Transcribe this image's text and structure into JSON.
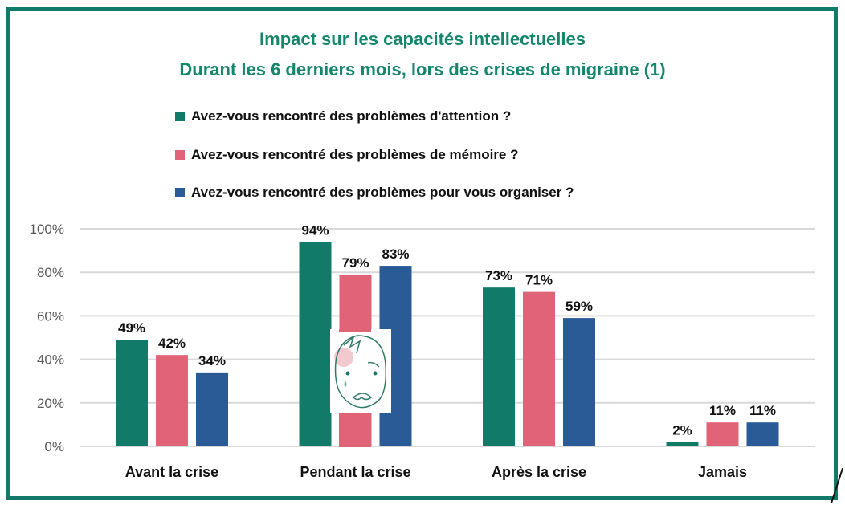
{
  "chart_data": {
    "type": "bar",
    "title": "Impact sur les capacités intellectuelles",
    "subtitle": "Durant les 6 derniers mois, lors des crises de migraine (1)",
    "categories": [
      "Avant la crise",
      "Pendant la crise",
      "Après la crise",
      "Jamais"
    ],
    "series": [
      {
        "name": "Avez-vous rencontré des problèmes d'attention ?",
        "color": "#127a68",
        "values": [
          49,
          94,
          73,
          2
        ]
      },
      {
        "name": "Avez-vous rencontré des problèmes de mémoire ?",
        "color": "#e06377",
        "values": [
          42,
          79,
          71,
          11
        ]
      },
      {
        "name": "Avez-vous rencontré des problèmes pour vous organiser ?",
        "color": "#2a5b97",
        "values": [
          34,
          83,
          59,
          11
        ]
      }
    ],
    "yticks": [
      "0%",
      "20%",
      "40%",
      "60%",
      "80%",
      "100%"
    ],
    "ylim": [
      0,
      100
    ],
    "yunit": "%",
    "grid": true,
    "legend_placement": "top",
    "overlay_image": "migraine-face-icon"
  }
}
